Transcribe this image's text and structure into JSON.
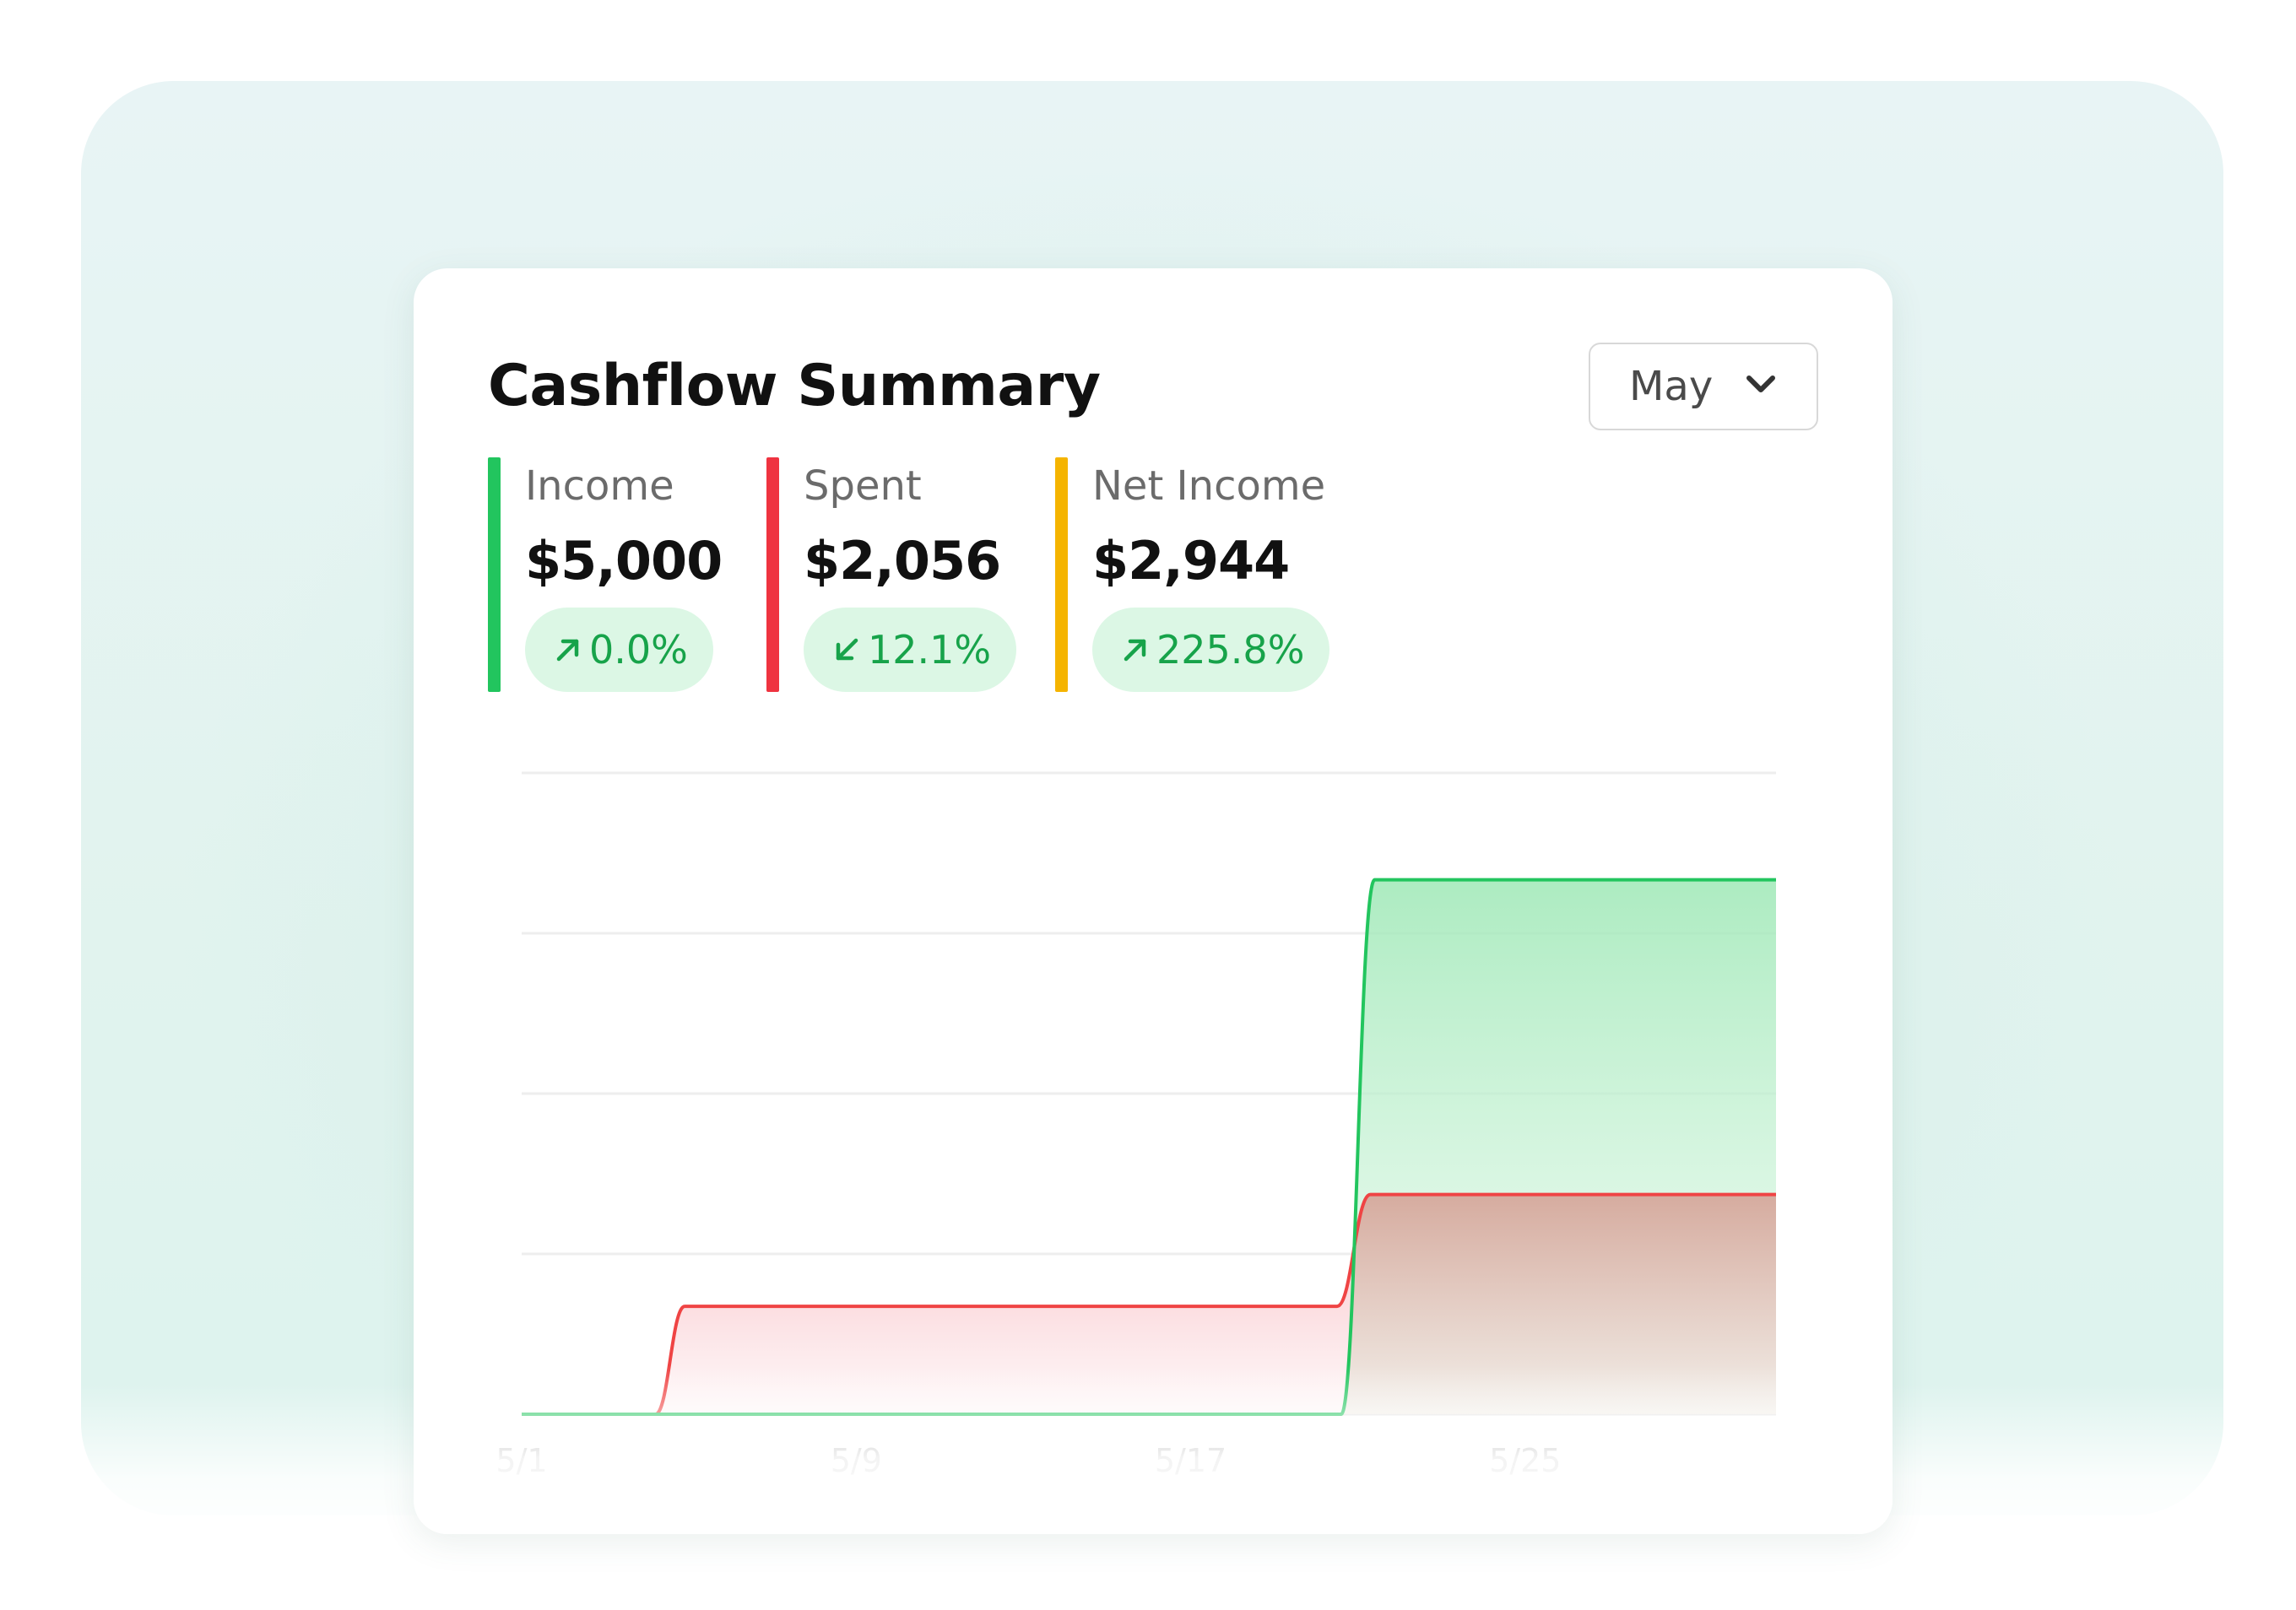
{
  "widget": {
    "title": "Cashflow Summary",
    "period_select": {
      "selected": "May",
      "icon": "chevron-down-icon"
    }
  },
  "stats": [
    {
      "label": "Income",
      "value": "$5,000",
      "change": "0.0%",
      "direction": "up",
      "icon": "arrow-up-right-icon",
      "bar_color": "#22c55e"
    },
    {
      "label": "Spent",
      "value": "$2,056",
      "change": "12.1%",
      "direction": "down",
      "icon": "arrow-down-left-icon",
      "bar_color": "#ef3340"
    },
    {
      "label": "Net Income",
      "value": "$2,944",
      "change": "225.8%",
      "direction": "up",
      "icon": "arrow-up-right-icon",
      "bar_color": "#f5b400"
    }
  ],
  "colors": {
    "positive_text": "#17a34a",
    "positive_pill": "#dcf7e5",
    "income_line": "#22c55e",
    "spent_line": "#ef4444",
    "gridline": "#eeeeee"
  },
  "chart_data": {
    "type": "area",
    "title": "",
    "xlabel": "",
    "ylabel": "",
    "x_tick_labels": [
      "5/1",
      "5/9",
      "5/17",
      "5/25"
    ],
    "x_ticks_day": [
      1,
      9,
      17,
      25
    ],
    "x_range_day": [
      1,
      31
    ],
    "ylim": [
      0,
      6000
    ],
    "gridlines": 5,
    "grid": true,
    "legend": "none",
    "series": [
      {
        "name": "Income",
        "color": "#22c55e",
        "points": [
          {
            "day": 1,
            "value": 0
          },
          {
            "day": 20.6,
            "value": 0
          },
          {
            "day": 21.4,
            "value": 5000
          },
          {
            "day": 31,
            "value": 5000
          }
        ]
      },
      {
        "name": "Spent",
        "color": "#ef4444",
        "points": [
          {
            "day": 1,
            "value": 0
          },
          {
            "day": 4.2,
            "value": 0
          },
          {
            "day": 4.9,
            "value": 1010
          },
          {
            "day": 20.5,
            "value": 1010
          },
          {
            "day": 21.3,
            "value": 2056
          },
          {
            "day": 31,
            "value": 2056
          }
        ]
      }
    ]
  }
}
